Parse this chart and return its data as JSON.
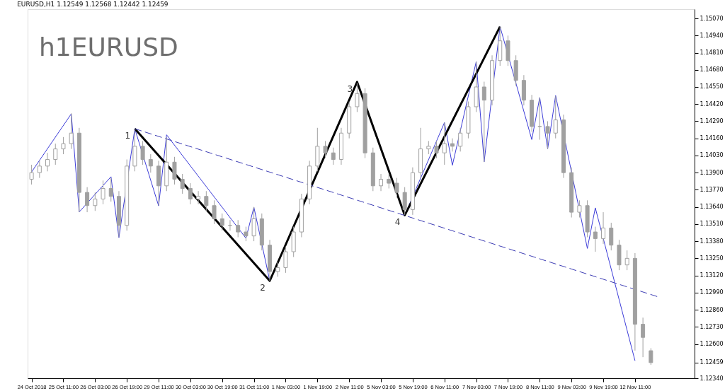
{
  "chart_data": {
    "type": "candlestick",
    "title": "EURUSD,H1  1.12549 1.12568 1.12442 1.12459",
    "annotations": [
      "h1EURUSD",
      "1",
      "2",
      "3",
      "4"
    ],
    "color": "#a0a0a0",
    "categories": [
      "24 Oct 2018",
      null,
      null,
      null,
      "25 Oct 11:00",
      null,
      null,
      null,
      "26 Oct 03:00",
      null,
      null,
      null,
      "26 Oct 19:00",
      null,
      null,
      null,
      "29 Oct 11:00",
      null,
      null,
      null,
      "30 Oct 03:00",
      null,
      null,
      null,
      "30 Oct 19:00",
      null,
      null,
      null,
      "31 Oct 11:00",
      null,
      null,
      null,
      "1 Nov 03:00",
      null,
      null,
      null,
      "1 Nov 19:00",
      null,
      null,
      null,
      "2 Nov 11:00",
      null,
      null,
      null,
      "5 Nov 03:00",
      null,
      null,
      null,
      "5 Nov 19:00",
      null,
      null,
      null,
      "6 Nov 11:00",
      null,
      null,
      null,
      "7 Nov 03:00",
      null,
      null,
      null,
      "7 Nov 19:00",
      null,
      null,
      null,
      "8 Nov 11:00",
      null,
      null,
      null,
      "9 Nov 03:00",
      null,
      null,
      null,
      "9 Nov 19:00",
      null,
      null,
      null,
      "12 Nov 11:00",
      null,
      null,
      null,
      null,
      null,
      null,
      null
    ],
    "ohlc": [
      [
        1.1385,
        1.1396,
        1.1381,
        1.139
      ],
      [
        1.139,
        1.1399,
        1.1386,
        1.1395
      ],
      [
        1.1395,
        1.1405,
        1.1391,
        1.14
      ],
      [
        1.14,
        1.1412,
        1.1396,
        1.1408
      ],
      [
        1.1408,
        1.1417,
        1.1404,
        1.1412
      ],
      [
        1.1412,
        1.1435,
        1.1408,
        1.142
      ],
      [
        1.142,
        1.1424,
        1.136,
        1.1375
      ],
      [
        1.1375,
        1.1379,
        1.136,
        1.1365
      ],
      [
        1.1365,
        1.1375,
        1.1361,
        1.137
      ],
      [
        1.137,
        1.1384,
        1.1366,
        1.1378
      ],
      [
        1.1378,
        1.1386,
        1.1368,
        1.1372
      ],
      [
        1.1372,
        1.1376,
        1.1341,
        1.135
      ],
      [
        1.135,
        1.14,
        1.1346,
        1.1395
      ],
      [
        1.1395,
        1.1423,
        1.1391,
        1.141
      ],
      [
        1.141,
        1.1414,
        1.1396,
        1.14
      ],
      [
        1.14,
        1.1404,
        1.139,
        1.1395
      ],
      [
        1.1395,
        1.1399,
        1.1365,
        1.138
      ],
      [
        1.138,
        1.1417,
        1.1376,
        1.1398
      ],
      [
        1.1398,
        1.1402,
        1.1381,
        1.1385
      ],
      [
        1.1385,
        1.1389,
        1.1374,
        1.1378
      ],
      [
        1.1378,
        1.1382,
        1.1366,
        1.137
      ],
      [
        1.137,
        1.1376,
        1.1366,
        1.1372
      ],
      [
        1.1372,
        1.1376,
        1.1361,
        1.1365
      ],
      [
        1.1365,
        1.1369,
        1.1351,
        1.1355
      ],
      [
        1.1355,
        1.1359,
        1.1346,
        1.135
      ],
      [
        1.135,
        1.1354,
        1.1346,
        1.135
      ],
      [
        1.135,
        1.1354,
        1.1341,
        1.1345
      ],
      [
        1.1345,
        1.1349,
        1.1338,
        1.1342
      ],
      [
        1.1342,
        1.1364,
        1.1338,
        1.1355
      ],
      [
        1.1355,
        1.1359,
        1.1331,
        1.1335
      ],
      [
        1.1335,
        1.1339,
        1.1308,
        1.1315
      ],
      [
        1.1315,
        1.1322,
        1.1311,
        1.1318
      ],
      [
        1.1318,
        1.1334,
        1.1314,
        1.133
      ],
      [
        1.133,
        1.1349,
        1.1326,
        1.1345
      ],
      [
        1.1345,
        1.1374,
        1.1341,
        1.137
      ],
      [
        1.137,
        1.1399,
        1.1366,
        1.1395
      ],
      [
        1.1395,
        1.1424,
        1.1391,
        1.141
      ],
      [
        1.141,
        1.1414,
        1.1401,
        1.1405
      ],
      [
        1.1405,
        1.1409,
        1.1396,
        1.14
      ],
      [
        1.14,
        1.1424,
        1.1396,
        1.142
      ],
      [
        1.142,
        1.1444,
        1.1416,
        1.144
      ],
      [
        1.144,
        1.1458,
        1.1436,
        1.145
      ],
      [
        1.145,
        1.1454,
        1.1401,
        1.1405
      ],
      [
        1.1405,
        1.1409,
        1.1376,
        1.138
      ],
      [
        1.138,
        1.1389,
        1.1376,
        1.1385
      ],
      [
        1.1385,
        1.1389,
        1.1378,
        1.1382
      ],
      [
        1.1382,
        1.1386,
        1.1371,
        1.1375
      ],
      [
        1.1375,
        1.1379,
        1.1358,
        1.1362
      ],
      [
        1.1362,
        1.1394,
        1.1358,
        1.139
      ],
      [
        1.139,
        1.1424,
        1.1386,
        1.1408
      ],
      [
        1.1408,
        1.1414,
        1.1404,
        1.141
      ],
      [
        1.141,
        1.1414,
        1.1401,
        1.1405
      ],
      [
        1.1405,
        1.1428,
        1.1396,
        1.1412
      ],
      [
        1.1412,
        1.1416,
        1.1406,
        1.141
      ],
      [
        1.141,
        1.1424,
        1.1406,
        1.142
      ],
      [
        1.142,
        1.1444,
        1.1416,
        1.144
      ],
      [
        1.144,
        1.1474,
        1.1436,
        1.1455
      ],
      [
        1.1455,
        1.1459,
        1.1398,
        1.1445
      ],
      [
        1.1445,
        1.1479,
        1.1441,
        1.1475
      ],
      [
        1.1475,
        1.1501,
        1.1471,
        1.149
      ],
      [
        1.149,
        1.1494,
        1.1471,
        1.1475
      ],
      [
        1.1475,
        1.1479,
        1.1456,
        1.146
      ],
      [
        1.146,
        1.1464,
        1.1441,
        1.1445
      ],
      [
        1.1445,
        1.1449,
        1.1421,
        1.1425
      ],
      [
        1.1425,
        1.1447,
        1.1415,
        1.1425
      ],
      [
        1.1425,
        1.1429,
        1.1408,
        1.142
      ],
      [
        1.142,
        1.1448,
        1.1416,
        1.143
      ],
      [
        1.143,
        1.1434,
        1.1386,
        1.139
      ],
      [
        1.139,
        1.1394,
        1.1356,
        1.136
      ],
      [
        1.136,
        1.1369,
        1.1356,
        1.1365
      ],
      [
        1.1365,
        1.1369,
        1.1341,
        1.1345
      ],
      [
        1.1345,
        1.1349,
        1.133,
        1.134
      ],
      [
        1.134,
        1.136,
        1.1336,
        1.1348
      ],
      [
        1.1348,
        1.1352,
        1.1331,
        1.1335
      ],
      [
        1.1335,
        1.1339,
        1.1316,
        1.132
      ],
      [
        1.132,
        1.1331,
        1.1316,
        1.1325
      ],
      [
        1.1325,
        1.1329,
        1.1255,
        1.1275
      ],
      [
        1.1275,
        1.128,
        1.125,
        1.1265
      ],
      [
        1.12549,
        1.12568,
        1.12442,
        1.12459
      ],
      null,
      null,
      null,
      null,
      null
    ],
    "series": [
      {
        "type": "line",
        "color": "#3c3cd8",
        "line_style": "solid",
        "values": [
          1.13905,
          null,
          null,
          null,
          null,
          1.14346,
          1.13602,
          null,
          null,
          null,
          1.13869,
          1.13407,
          null,
          1.14233,
          null,
          null,
          1.13648,
          1.14187,
          null,
          null,
          null,
          null,
          null,
          null,
          null,
          null,
          null,
          1.13402,
          1.13638,
          null,
          1.13079,
          null,
          null,
          null,
          null,
          null,
          null,
          null,
          null,
          null,
          null,
          1.14588,
          null,
          null,
          null,
          null,
          null,
          1.13577,
          null,
          null,
          null,
          null,
          1.1428,
          1.13956,
          null,
          null,
          1.14742,
          1.13982,
          null,
          1.15008,
          null,
          null,
          null,
          1.14151,
          1.1447,
          1.1408,
          1.14485,
          null,
          null,
          null,
          1.13325,
          1.13633,
          null,
          null,
          null,
          null,
          1.12473,
          null,
          null,
          null,
          null,
          null,
          null,
          null
        ]
      },
      {
        "type": "line",
        "color": "#000000",
        "line_style": "solid",
        "values": [
          null,
          null,
          null,
          null,
          null,
          null,
          null,
          null,
          null,
          null,
          null,
          null,
          null,
          1.14233,
          null,
          null,
          null,
          null,
          null,
          null,
          null,
          null,
          null,
          null,
          null,
          null,
          null,
          null,
          null,
          null,
          1.13079,
          null,
          null,
          null,
          null,
          null,
          null,
          null,
          null,
          null,
          null,
          1.14588,
          null,
          null,
          null,
          null,
          null,
          1.13577,
          null,
          null,
          null,
          null,
          null,
          null,
          null,
          null,
          null,
          null,
          null,
          1.15008,
          null,
          null,
          null,
          null,
          null,
          null,
          null,
          null,
          null,
          null,
          null,
          null,
          null,
          null,
          null,
          null,
          null,
          null,
          null,
          null,
          null,
          null,
          null,
          null
        ]
      },
      {
        "type": "line",
        "color": "#3c3cb4",
        "line_style": "dashed",
        "values": [
          null,
          null,
          null,
          null,
          null,
          null,
          null,
          null,
          null,
          null,
          null,
          null,
          null,
          1.14233,
          null,
          null,
          null,
          null,
          null,
          null,
          null,
          null,
          null,
          null,
          null,
          null,
          null,
          null,
          null,
          null,
          null,
          null,
          null,
          null,
          null,
          null,
          null,
          null,
          null,
          null,
          null,
          null,
          null,
          null,
          null,
          null,
          null,
          null,
          null,
          null,
          null,
          null,
          null,
          null,
          null,
          null,
          null,
          null,
          null,
          null,
          null,
          null,
          null,
          null,
          null,
          null,
          null,
          null,
          null,
          null,
          null,
          null,
          null,
          null,
          null,
          null,
          null,
          null,
          null,
          1.12956,
          null,
          null,
          null,
          null
        ]
      }
    ],
    "ylim": [
      1.1234,
      1.1514
    ],
    "yticks": [
      {
        "value": 1.1507,
        "label": "1.15070"
      },
      {
        "value": 1.1494,
        "label": "1.14940"
      },
      {
        "value": 1.1481,
        "label": "1.14810"
      },
      {
        "value": 1.1468,
        "label": "1.14680"
      },
      {
        "value": 1.1455,
        "label": "1.14550"
      },
      {
        "value": 1.1442,
        "label": "1.14420"
      },
      {
        "value": 1.1429,
        "label": "1.14290"
      },
      {
        "value": 1.1416,
        "label": "1.14160"
      },
      {
        "value": 1.1403,
        "label": "1.14030"
      },
      {
        "value": 1.139,
        "label": "1.13900"
      },
      {
        "value": 1.1377,
        "label": "1.13770"
      },
      {
        "value": 1.1364,
        "label": "1.13640"
      },
      {
        "value": 1.1351,
        "label": "1.13510"
      },
      {
        "value": 1.1338,
        "label": "1.13380"
      },
      {
        "value": 1.1325,
        "label": "1.13250"
      },
      {
        "value": 1.1312,
        "label": "1.13120"
      },
      {
        "value": 1.1299,
        "label": "1.12990"
      },
      {
        "value": 1.1286,
        "label": "1.12860"
      },
      {
        "value": 1.1273,
        "label": "1.12730"
      },
      {
        "value": 1.126,
        "label": "1.12600"
      },
      {
        "value": 1.12459,
        "label": "1.12459"
      },
      {
        "value": 1.1234,
        "label": "1.12340"
      }
    ],
    "grid": false
  }
}
